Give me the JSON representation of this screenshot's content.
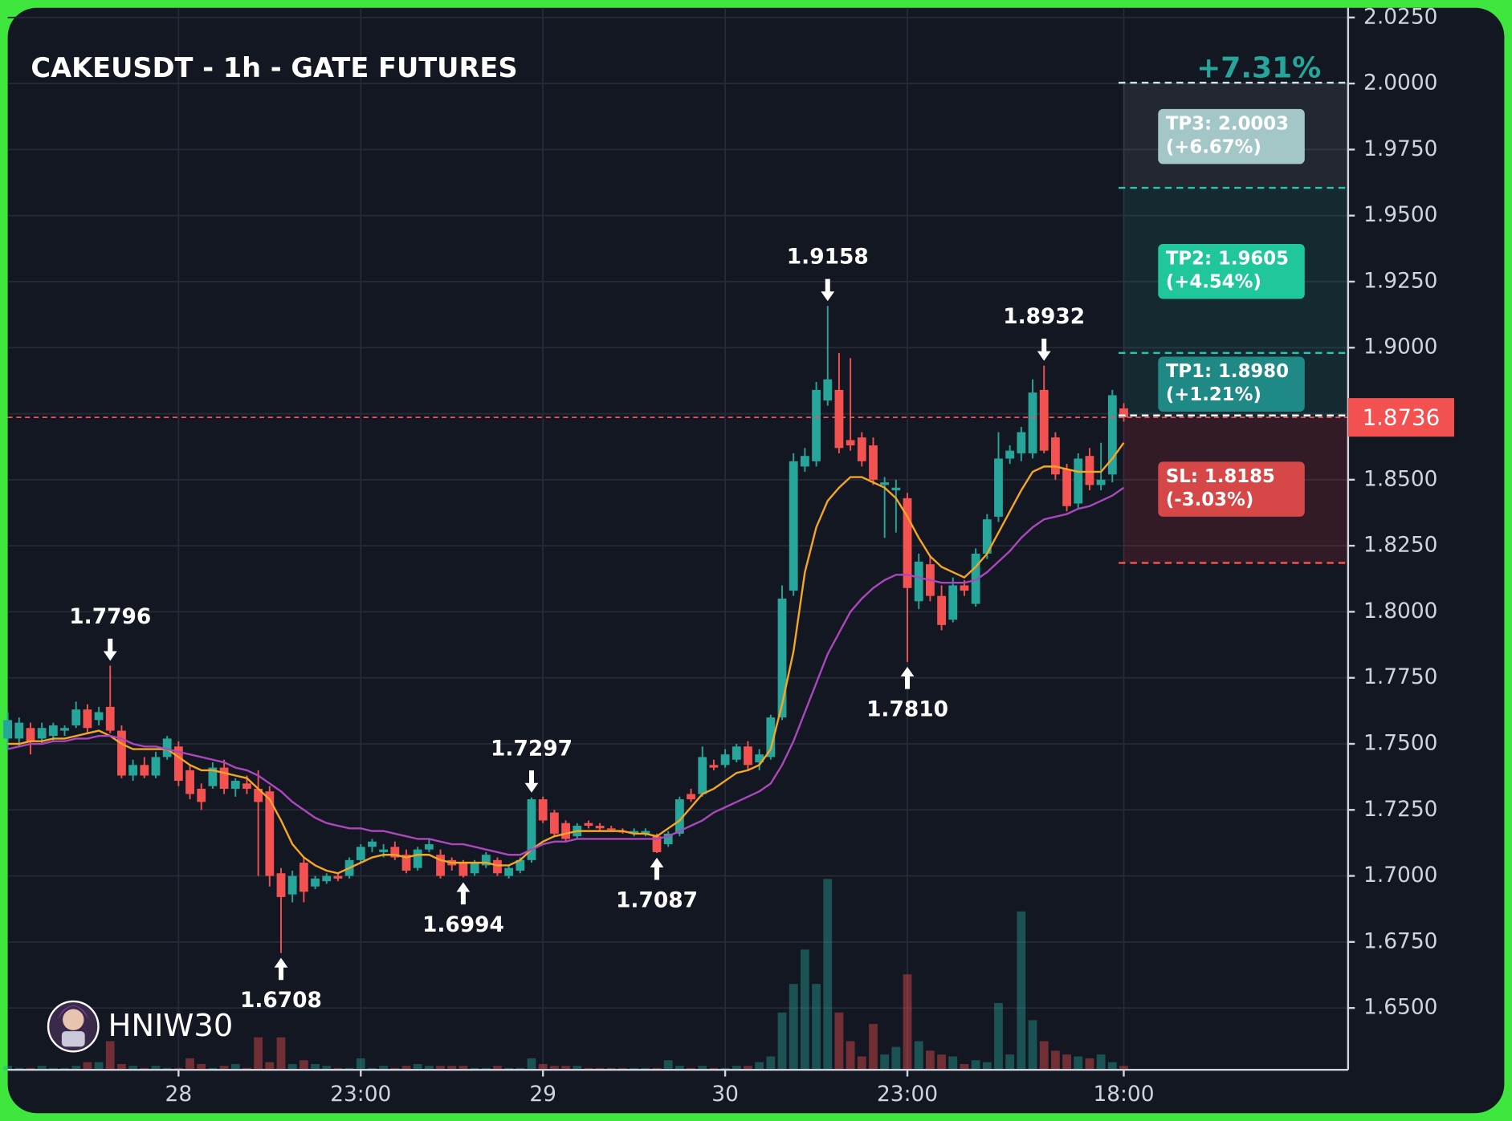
{
  "chart_data": {
    "type": "candlestick",
    "title": "CAKEUSDT - 1h - GATE FUTURES",
    "change_label": "+7.31%",
    "watermark": "HNIW30",
    "categories": [
      null,
      null,
      null,
      null,
      null,
      null,
      null,
      null,
      null,
      null,
      null,
      null,
      null,
      null,
      null,
      "28",
      null,
      null,
      null,
      null,
      null,
      null,
      null,
      null,
      null,
      null,
      null,
      null,
      null,
      null,
      null,
      "23:00",
      null,
      null,
      null,
      null,
      null,
      null,
      null,
      null,
      null,
      null,
      null,
      null,
      null,
      null,
      null,
      "29",
      null,
      null,
      null,
      null,
      null,
      null,
      null,
      null,
      null,
      null,
      null,
      null,
      null,
      null,
      null,
      "30",
      null,
      null,
      null,
      null,
      null,
      null,
      null,
      null,
      null,
      null,
      null,
      null,
      null,
      null,
      null,
      "23:00",
      null,
      null,
      null,
      null,
      null,
      null,
      null,
      null,
      null,
      null,
      null,
      null,
      null,
      null,
      null,
      null,
      null,
      null,
      "18:00"
    ],
    "open": [
      1.752,
      1.752,
      1.756,
      1.752,
      1.753,
      1.755,
      1.757,
      1.763,
      1.759,
      1.764,
      1.755,
      1.738,
      1.742,
      1.738,
      1.745,
      1.749,
      1.74,
      1.733,
      1.734,
      1.741,
      1.733,
      1.735,
      1.733,
      1.732,
      1.701,
      1.693,
      1.705,
      1.696,
      1.698,
      1.7,
      1.7,
      1.706,
      1.711,
      1.709,
      1.711,
      1.708,
      1.703,
      1.71,
      1.708,
      1.706,
      1.705,
      1.701,
      1.704,
      1.706,
      1.7,
      1.702,
      1.706,
      1.729,
      1.724,
      1.72,
      1.715,
      1.72,
      1.719,
      1.718,
      1.717,
      1.716,
      1.716,
      1.715,
      1.712,
      1.716,
      1.731,
      1.731,
      1.742,
      1.742,
      1.744,
      1.749,
      1.743,
      1.745,
      1.76,
      1.808,
      1.855,
      1.857,
      1.88,
      1.884,
      1.865,
      1.866,
      1.863,
      1.848,
      1.846,
      1.843,
      1.804,
      1.818,
      1.806,
      1.797,
      1.81,
      1.803,
      1.822,
      1.836,
      1.858,
      1.86,
      1.86,
      1.884,
      1.866,
      1.854,
      1.841,
      1.859,
      1.848,
      1.852,
      1.877
    ],
    "high": [
      1.762,
      1.76,
      1.758,
      1.758,
      1.758,
      1.757,
      1.766,
      1.765,
      1.764,
      1.7796,
      1.757,
      1.744,
      1.745,
      1.747,
      1.753,
      1.751,
      1.742,
      1.735,
      1.743,
      1.744,
      1.737,
      1.738,
      1.74,
      1.734,
      1.703,
      1.702,
      1.707,
      1.7,
      1.701,
      1.701,
      1.707,
      1.712,
      1.714,
      1.712,
      1.713,
      1.71,
      1.711,
      1.714,
      1.71,
      1.707,
      1.706,
      1.706,
      1.709,
      1.707,
      1.704,
      1.707,
      1.7297,
      1.73,
      1.725,
      1.721,
      1.72,
      1.721,
      1.72,
      1.719,
      1.718,
      1.718,
      1.718,
      1.716,
      1.717,
      1.73,
      1.733,
      1.749,
      1.744,
      1.748,
      1.75,
      1.751,
      1.748,
      1.761,
      1.81,
      1.86,
      1.862,
      1.887,
      1.9158,
      1.898,
      1.896,
      1.868,
      1.866,
      1.851,
      1.85,
      1.845,
      1.822,
      1.821,
      1.81,
      1.813,
      1.812,
      1.824,
      1.837,
      1.868,
      1.863,
      1.87,
      1.888,
      1.8932,
      1.868,
      1.856,
      1.86,
      1.862,
      1.864,
      1.884,
      1.879
    ],
    "low": [
      1.748,
      1.749,
      1.746,
      1.75,
      1.751,
      1.753,
      1.756,
      1.754,
      1.757,
      1.754,
      1.737,
      1.736,
      1.737,
      1.737,
      1.744,
      1.734,
      1.729,
      1.725,
      1.733,
      1.731,
      1.73,
      1.731,
      1.7,
      1.696,
      1.6708,
      1.69,
      1.69,
      1.695,
      1.697,
      1.698,
      1.699,
      1.705,
      1.709,
      1.707,
      1.706,
      1.701,
      1.702,
      1.709,
      1.699,
      1.702,
      1.6994,
      1.7,
      1.703,
      1.7,
      1.699,
      1.701,
      1.705,
      1.72,
      1.715,
      1.713,
      1.714,
      1.718,
      1.717,
      1.717,
      1.716,
      1.715,
      1.715,
      1.7087,
      1.711,
      1.715,
      1.728,
      1.73,
      1.74,
      1.741,
      1.743,
      1.74,
      1.74,
      1.744,
      1.759,
      1.806,
      1.853,
      1.855,
      1.878,
      1.86,
      1.861,
      1.855,
      1.848,
      1.828,
      1.83,
      1.781,
      1.801,
      1.804,
      1.793,
      1.796,
      1.806,
      1.802,
      1.82,
      1.834,
      1.856,
      1.857,
      1.858,
      1.86,
      1.85,
      1.838,
      1.839,
      1.846,
      1.846,
      1.849,
      1.872
    ],
    "close": [
      1.759,
      1.758,
      1.751,
      1.756,
      1.757,
      1.756,
      1.763,
      1.756,
      1.762,
      1.755,
      1.738,
      1.742,
      1.738,
      1.745,
      1.752,
      1.736,
      1.731,
      1.728,
      1.741,
      1.733,
      1.736,
      1.733,
      1.728,
      1.7,
      1.692,
      1.7,
      1.694,
      1.699,
      1.7,
      1.699,
      1.706,
      1.711,
      1.713,
      1.71,
      1.707,
      1.702,
      1.71,
      1.712,
      1.7,
      1.704,
      1.7,
      1.705,
      1.708,
      1.701,
      1.703,
      1.706,
      1.729,
      1.721,
      1.716,
      1.714,
      1.719,
      1.719,
      1.718,
      1.7175,
      1.7165,
      1.717,
      1.717,
      1.709,
      1.716,
      1.729,
      1.729,
      1.745,
      1.741,
      1.746,
      1.749,
      1.742,
      1.746,
      1.76,
      1.805,
      1.857,
      1.859,
      1.884,
      1.888,
      1.862,
      1.863,
      1.857,
      1.85,
      1.849,
      1.847,
      1.809,
      1.819,
      1.806,
      1.795,
      1.81,
      1.808,
      1.822,
      1.835,
      1.858,
      1.861,
      1.868,
      1.883,
      1.861,
      1.852,
      1.84,
      1.858,
      1.848,
      1.85,
      1.882,
      1.8736
    ],
    "volume": [
      2,
      1,
      1,
      2,
      1,
      1,
      2,
      4,
      4,
      15,
      3,
      2,
      1,
      2,
      1,
      1,
      6,
      3,
      1,
      2,
      3,
      1,
      17,
      4,
      17,
      3,
      5,
      3,
      2,
      1,
      1,
      6,
      1,
      2,
      1,
      2,
      3,
      2,
      2,
      2,
      2,
      1,
      1,
      2,
      1,
      1,
      6,
      3,
      2,
      2,
      2,
      1,
      1,
      1,
      1,
      1,
      1,
      1,
      5,
      2,
      1,
      2,
      1,
      1,
      2,
      2,
      4,
      7,
      30,
      45,
      63,
      45,
      100,
      30,
      15,
      7,
      24,
      8,
      12,
      50,
      15,
      10,
      8,
      7,
      3,
      5,
      4,
      35,
      8,
      83,
      26,
      15,
      10,
      8,
      7,
      6,
      8,
      4,
      2
    ],
    "volume_lim": [
      0,
      100
    ],
    "up_color": "#26a69a",
    "down_color": "#f45151",
    "series": [
      {
        "color": "#f5a623",
        "values": [
          1.75,
          1.75,
          1.751,
          1.751,
          1.752,
          1.752,
          1.753,
          1.754,
          1.755,
          1.753,
          1.75,
          1.748,
          1.748,
          1.748,
          1.748,
          1.745,
          1.742,
          1.74,
          1.74,
          1.739,
          1.738,
          1.737,
          1.733,
          1.729,
          1.721,
          1.712,
          1.707,
          1.704,
          1.702,
          1.701,
          1.703,
          1.705,
          1.707,
          1.708,
          1.708,
          1.707,
          1.708,
          1.708,
          1.706,
          1.705,
          1.705,
          1.705,
          1.705,
          1.704,
          1.704,
          1.706,
          1.71,
          1.713,
          1.715,
          1.716,
          1.717,
          1.717,
          1.717,
          1.717,
          1.717,
          1.716,
          1.716,
          1.715,
          1.718,
          1.721,
          1.726,
          1.731,
          1.733,
          1.736,
          1.739,
          1.74,
          1.742,
          1.748,
          1.765,
          1.785,
          1.815,
          1.832,
          1.842,
          1.847,
          1.851,
          1.851,
          1.849,
          1.847,
          1.843,
          1.836,
          1.828,
          1.821,
          1.817,
          1.815,
          1.813,
          1.817,
          1.822,
          1.83,
          1.838,
          1.846,
          1.853,
          1.855,
          1.855,
          1.854,
          1.853,
          1.853,
          1.853,
          1.858,
          1.864
        ]
      },
      {
        "color": "#ab47bc",
        "values": [
          1.748,
          1.749,
          1.75,
          1.75,
          1.751,
          1.751,
          1.752,
          1.752,
          1.753,
          1.753,
          1.752,
          1.75,
          1.749,
          1.749,
          1.748,
          1.747,
          1.746,
          1.745,
          1.744,
          1.743,
          1.741,
          1.74,
          1.738,
          1.735,
          1.732,
          1.728,
          1.725,
          1.722,
          1.72,
          1.719,
          1.718,
          1.718,
          1.717,
          1.717,
          1.716,
          1.715,
          1.714,
          1.714,
          1.713,
          1.712,
          1.712,
          1.711,
          1.71,
          1.709,
          1.708,
          1.708,
          1.71,
          1.712,
          1.713,
          1.713,
          1.714,
          1.714,
          1.714,
          1.714,
          1.714,
          1.714,
          1.714,
          1.714,
          1.715,
          1.717,
          1.719,
          1.721,
          1.724,
          1.726,
          1.728,
          1.73,
          1.732,
          1.735,
          1.742,
          1.751,
          1.762,
          1.773,
          1.784,
          1.792,
          1.8,
          1.805,
          1.809,
          1.812,
          1.814,
          1.814,
          1.813,
          1.812,
          1.811,
          1.811,
          1.811,
          1.812,
          1.815,
          1.819,
          1.823,
          1.828,
          1.832,
          1.835,
          1.836,
          1.837,
          1.839,
          1.84,
          1.842,
          1.844,
          1.847
        ]
      }
    ],
    "ylim": [
      1.6266,
      2.025
    ],
    "yticks": [
      {
        "value": 2.025,
        "label": "2.0250"
      },
      {
        "value": 2.0,
        "label": "2.0000"
      },
      {
        "value": 1.975,
        "label": "1.9750"
      },
      {
        "value": 1.95,
        "label": "1.9500"
      },
      {
        "value": 1.925,
        "label": "1.9250"
      },
      {
        "value": 1.9,
        "label": "1.9000"
      },
      {
        "value": 1.875,
        "label": "1.8750"
      },
      {
        "value": 1.85,
        "label": "1.8500"
      },
      {
        "value": 1.825,
        "label": "1.8250"
      },
      {
        "value": 1.8,
        "label": "1.8000"
      },
      {
        "value": 1.775,
        "label": "1.7750"
      },
      {
        "value": 1.75,
        "label": "1.7500"
      },
      {
        "value": 1.725,
        "label": "1.7250"
      },
      {
        "value": 1.7,
        "label": "1.7000"
      },
      {
        "value": 1.675,
        "label": "1.6750"
      },
      {
        "value": 1.65,
        "label": "1.6500"
      }
    ],
    "grid": true,
    "current_price": 1.8736,
    "annotations": [
      {
        "index": 9,
        "kind": "high",
        "value": 1.7796,
        "label": "1.7796"
      },
      {
        "index": 24,
        "kind": "low",
        "value": 1.6708,
        "label": "1.6708"
      },
      {
        "index": 40,
        "kind": "low",
        "value": 1.6994,
        "label": "1.6994"
      },
      {
        "index": 46,
        "kind": "high",
        "value": 1.7297,
        "label": "1.7297"
      },
      {
        "index": 57,
        "kind": "low",
        "value": 1.7087,
        "label": "1.7087"
      },
      {
        "index": 72,
        "kind": "high",
        "value": 1.9158,
        "label": "1.9158"
      },
      {
        "index": 79,
        "kind": "low",
        "value": 1.781,
        "label": "1.7810"
      },
      {
        "index": 91,
        "kind": "high",
        "value": 1.8932,
        "label": "1.8932"
      }
    ],
    "levels": [
      {
        "value": 2.0003,
        "label": "TP3: 2.0003",
        "change": "(+6.67%)",
        "color": "#a3c7c7",
        "zone": "rgba(255,255,255,0.07)"
      },
      {
        "value": 1.9605,
        "label": "TP2: 1.9605",
        "change": "(+4.54%)",
        "color": "#1fc79b",
        "zone": "rgba(38,166,154,0.13)"
      },
      {
        "value": 1.898,
        "label": "TP1: 1.8980",
        "change": "(+1.21%)",
        "color": "#1f8a85",
        "zone": null
      },
      {
        "value": 1.8185,
        "label": "SL: 1.8185",
        "change": "(-3.03%)",
        "color": "#d64848",
        "zone": "rgba(242,54,69,0.14)"
      }
    ]
  }
}
